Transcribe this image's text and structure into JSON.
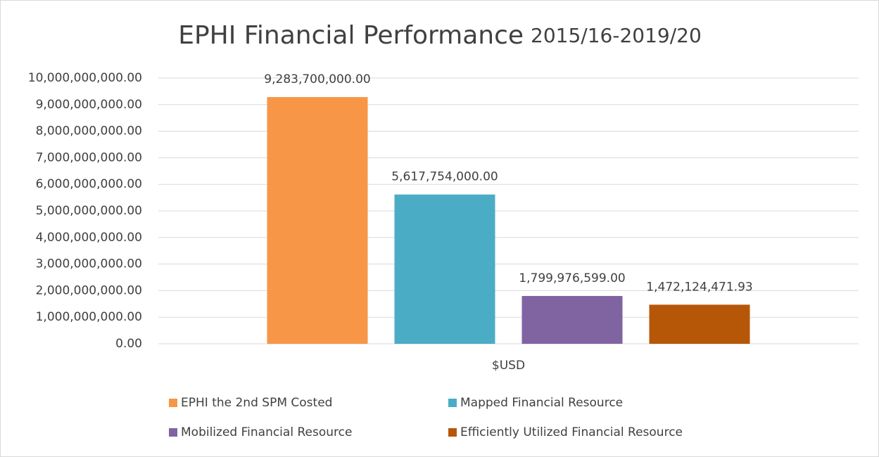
{
  "chart_data": {
    "type": "bar",
    "title": "EPHI Financial Performance",
    "subtitle": "2015/16-2019/20",
    "categories": [
      "$USD"
    ],
    "series": [
      {
        "name": "EPHI the 2nd SPM Costed",
        "color": "#f79646",
        "values": [
          9283700000
        ],
        "value_labels": [
          "9,283,700,000.00"
        ]
      },
      {
        "name": "Mapped Financial Resource",
        "color": "#4bacc6",
        "values": [
          5617754000
        ],
        "value_labels": [
          "5,617,754,000.00"
        ]
      },
      {
        "name": "Mobilized Financial Resource",
        "color": "#8064a2",
        "values": [
          1799976599
        ],
        "value_labels": [
          "1,799,976,599.00"
        ]
      },
      {
        "name": "Efficiently Utilized Financial Resource",
        "color": "#b65708",
        "values": [
          1472124471.93
        ],
        "value_labels": [
          "1,472,124,471.93"
        ]
      }
    ],
    "ylim": [
      0,
      10000000000
    ],
    "yticks": [
      {
        "value": 0,
        "label": "0.00"
      },
      {
        "value": 1000000000,
        "label": "1,000,000,000.00"
      },
      {
        "value": 2000000000,
        "label": "2,000,000,000.00"
      },
      {
        "value": 3000000000,
        "label": "3,000,000,000.00"
      },
      {
        "value": 4000000000,
        "label": "4,000,000,000.00"
      },
      {
        "value": 5000000000,
        "label": "5,000,000,000.00"
      },
      {
        "value": 6000000000,
        "label": "6,000,000,000.00"
      },
      {
        "value": 7000000000,
        "label": "7,000,000,000.00"
      },
      {
        "value": 8000000000,
        "label": "8,000,000,000.00"
      },
      {
        "value": 9000000000,
        "label": "9,000,000,000.00"
      },
      {
        "value": 10000000000,
        "label": "10,000,000,000.00"
      }
    ],
    "grid": true,
    "legend": "bottom"
  }
}
